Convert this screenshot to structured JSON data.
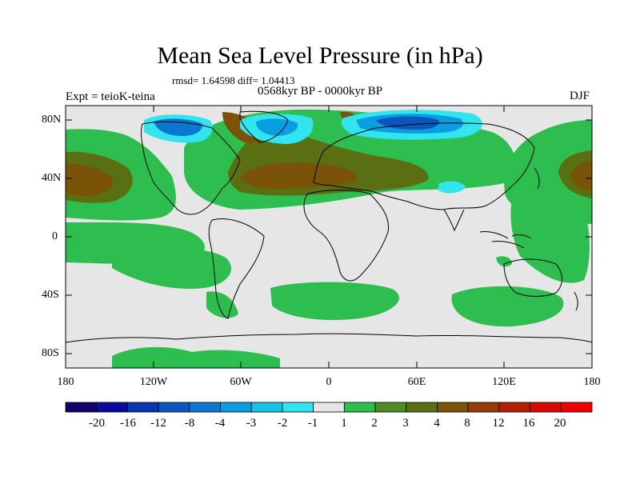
{
  "title": "Mean Sea Level Pressure (in hPa)",
  "stats": "rmsd= 1.64598 diff= 1.04413",
  "period": "0568kyr BP - 0000kyr BP",
  "experiment": "Expt = teioK-teina",
  "season": "DJF",
  "lat_labels": [
    "80N",
    "40N",
    "0",
    "40S",
    "80S"
  ],
  "lon_labels": [
    "180",
    "120W",
    "60W",
    "0",
    "60E",
    "120E",
    "180"
  ],
  "colorbar": {
    "labels": [
      "-20",
      "-16",
      "-12",
      "-8",
      "-4",
      "-3",
      "-2",
      "-1",
      "1",
      "2",
      "3",
      "4",
      "8",
      "12",
      "16",
      "20"
    ],
    "colors": [
      "#15006b",
      "#0a0aa0",
      "#0a34b4",
      "#0a55be",
      "#0a78d2",
      "#0a9ee0",
      "#14c4e6",
      "#32e4ee",
      "#e6e6e6",
      "#2ebe50",
      "#4e8c24",
      "#5a6e12",
      "#7a5208",
      "#9a3a06",
      "#b81e04",
      "#d70a02",
      "#f00000"
    ]
  },
  "legend_colors": {
    "neutral": "#e6e6e6",
    "pos_1_2": "#2ebe50",
    "pos_2_3": "#4e8c24",
    "pos_3_4": "#5a6e12",
    "pos_4_8": "#7a5208",
    "neg_1_2": "#32e4ee",
    "neg_2_3": "#14c4e6",
    "neg_3_4": "#0a9ee0",
    "neg_4_8": "#0a78d2",
    "neg_8_12": "#0a55be"
  }
}
